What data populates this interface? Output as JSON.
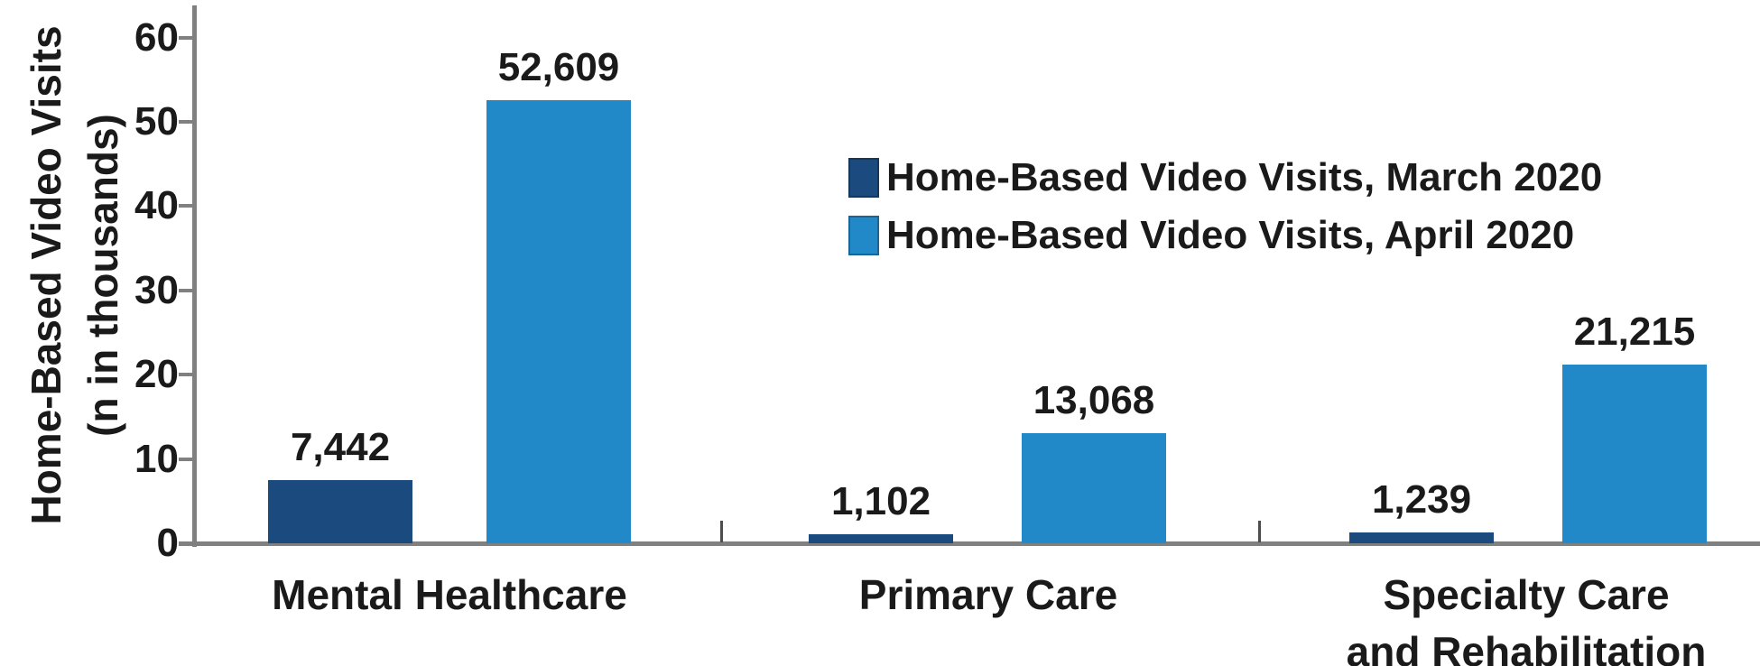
{
  "chart_data": {
    "type": "bar",
    "title": "",
    "ylabel_lines": [
      "Home-Based Video Visits",
      "(n in thousands)"
    ],
    "ylabel": "Home-Based Video Visits (n in thousands)",
    "categories": [
      "Mental Healthcare",
      "Primary Care",
      "Specialty Care\nand Rehabilitation"
    ],
    "series": [
      {
        "name": "Home-Based Video Visits, March 2020",
        "color": "#1B4A7E",
        "values": [
          7442,
          1102,
          1239
        ],
        "labels": [
          "7,442",
          "1,102",
          "1,239"
        ]
      },
      {
        "name": "Home-Based Video Visits, April 2020",
        "color": "#2289C9",
        "values": [
          52609,
          13068,
          21215
        ],
        "labels": [
          "52,609",
          "13,068",
          "21,215"
        ]
      }
    ],
    "ylim": [
      0,
      60
    ],
    "yticks": [
      0,
      10,
      20,
      30,
      40,
      50,
      60
    ],
    "values_scale_note": "y axis shown in thousands",
    "grid": false,
    "legend_position": "upper center-right inside plot",
    "axis_color": "#808080",
    "text_color": "#1a1a1a"
  }
}
